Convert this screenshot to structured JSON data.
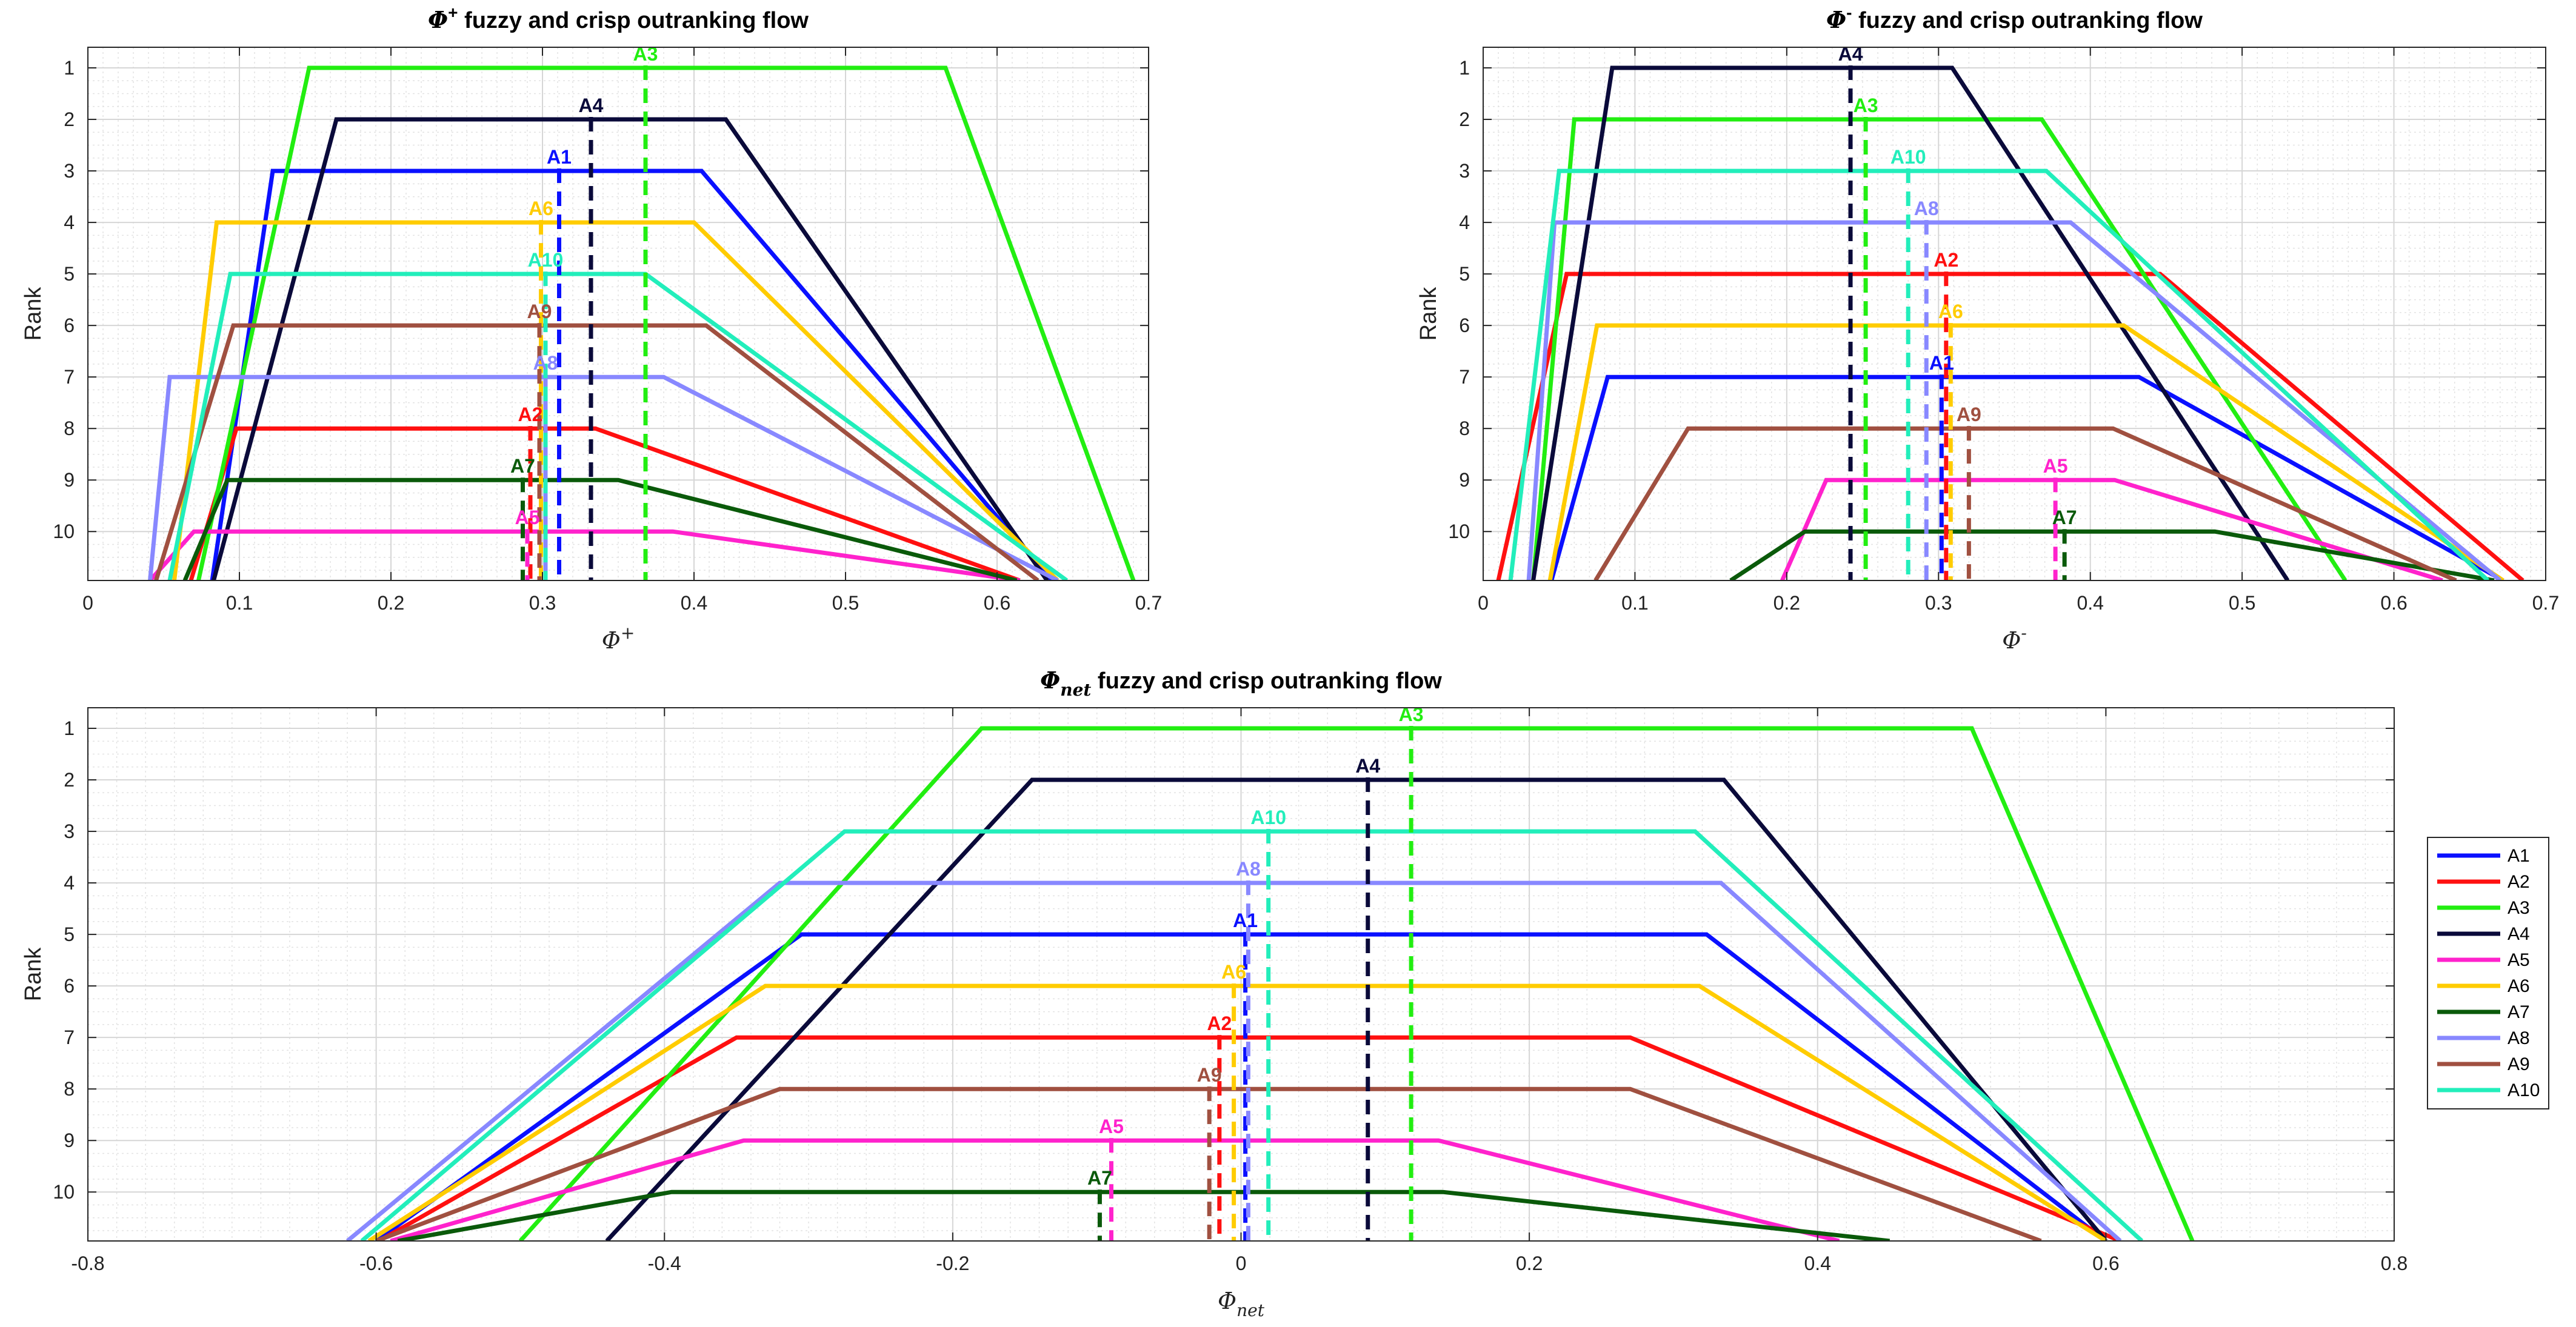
{
  "ylabel": "Rank",
  "series_names": [
    "A1",
    "A2",
    "A3",
    "A4",
    "A5",
    "A6",
    "A7",
    "A8",
    "A9",
    "A10"
  ],
  "colors": {
    "A1": "#0a10ff",
    "A2": "#ff1010",
    "A3": "#22ee11",
    "A4": "#0a0a3a",
    "A5": "#ff22cc",
    "A6": "#ffcc00",
    "A7": "#0a5a0a",
    "A8": "#8888ff",
    "A9": "#a05040",
    "A10": "#22eebb"
  },
  "chart_data": [
    {
      "type": "line",
      "title_main": "Φ",
      "title_sup": "+",
      "title_rest": " fuzzy and crisp outranking flow",
      "xlabel_main": "Φ",
      "xlabel_sup": "+",
      "ylabel": "Rank",
      "xlim": [
        0,
        0.7
      ],
      "ylim": [
        0.6,
        10.95
      ],
      "xticks": [
        0,
        0.1,
        0.2,
        0.3,
        0.4,
        0.5,
        0.6,
        0.7
      ],
      "xtick_labels": [
        "0",
        "0.1",
        "0.2",
        "0.3",
        "0.4",
        "0.5",
        "0.6",
        "0.7"
      ],
      "yticks": [
        1,
        2,
        3,
        4,
        5,
        6,
        7,
        8,
        9,
        10
      ],
      "yticks_labels": [
        "1",
        "2",
        "3",
        "4",
        "5",
        "6",
        "7",
        "8",
        "9",
        "10"
      ],
      "grid": true,
      "series": [
        {
          "name": "A1",
          "rank": 3,
          "a": 0.082,
          "b": 0.122,
          "c": 0.405,
          "d": 0.636,
          "crisp": 0.311
        },
        {
          "name": "A2",
          "rank": 8,
          "a": 0.068,
          "b": 0.098,
          "c": 0.335,
          "d": 0.615,
          "crisp": 0.292
        },
        {
          "name": "A3",
          "rank": 1,
          "a": 0.073,
          "b": 0.146,
          "c": 0.566,
          "d": 0.69,
          "crisp": 0.368
        },
        {
          "name": "A4",
          "rank": 2,
          "a": 0.083,
          "b": 0.164,
          "c": 0.421,
          "d": 0.633,
          "crisp": 0.332
        },
        {
          "name": "A5",
          "rank": 10,
          "a": 0.041,
          "b": 0.07,
          "c": 0.386,
          "d": 0.615,
          "crisp": 0.29
        },
        {
          "name": "A6",
          "rank": 4,
          "a": 0.057,
          "b": 0.085,
          "c": 0.4,
          "d": 0.64,
          "crisp": 0.299
        },
        {
          "name": "A7",
          "rank": 9,
          "a": 0.064,
          "b": 0.092,
          "c": 0.35,
          "d": 0.613,
          "crisp": 0.287
        },
        {
          "name": "A8",
          "rank": 7,
          "a": 0.041,
          "b": 0.054,
          "c": 0.38,
          "d": 0.64,
          "crisp": 0.302
        },
        {
          "name": "A9",
          "rank": 6,
          "a": 0.045,
          "b": 0.096,
          "c": 0.408,
          "d": 0.627,
          "crisp": 0.298
        },
        {
          "name": "A10",
          "rank": 5,
          "a": 0.054,
          "b": 0.094,
          "c": 0.368,
          "d": 0.646,
          "crisp": 0.302
        }
      ]
    },
    {
      "type": "line",
      "title_main": "Φ",
      "title_sup": "-",
      "title_rest": " fuzzy and crisp outranking flow",
      "xlabel_main": "Φ",
      "xlabel_sup": "-",
      "ylabel": "Rank",
      "xlim": [
        0,
        0.7
      ],
      "ylim": [
        0.6,
        10.95
      ],
      "xticks": [
        0,
        0.1,
        0.2,
        0.3,
        0.4,
        0.5,
        0.6,
        0.7
      ],
      "xtick_labels": [
        "0",
        "0.1",
        "0.2",
        "0.3",
        "0.4",
        "0.5",
        "0.6",
        "0.7"
      ],
      "yticks": [
        1,
        2,
        3,
        4,
        5,
        6,
        7,
        8,
        9,
        10
      ],
      "yticks_labels": [
        "1",
        "2",
        "3",
        "4",
        "5",
        "6",
        "7",
        "8",
        "9",
        "10"
      ],
      "grid": true,
      "series": [
        {
          "name": "A1",
          "rank": 7,
          "a": 0.045,
          "b": 0.082,
          "c": 0.432,
          "d": 0.672,
          "crisp": 0.302
        },
        {
          "name": "A2",
          "rank": 5,
          "a": 0.01,
          "b": 0.055,
          "c": 0.446,
          "d": 0.685,
          "crisp": 0.305
        },
        {
          "name": "A3",
          "rank": 2,
          "a": 0.033,
          "b": 0.06,
          "c": 0.368,
          "d": 0.568,
          "crisp": 0.252
        },
        {
          "name": "A4",
          "rank": 1,
          "a": 0.033,
          "b": 0.085,
          "c": 0.309,
          "d": 0.53,
          "crisp": 0.242
        },
        {
          "name": "A5",
          "rank": 9,
          "a": 0.197,
          "b": 0.226,
          "c": 0.416,
          "d": 0.632,
          "crisp": 0.377
        },
        {
          "name": "A6",
          "rank": 6,
          "a": 0.044,
          "b": 0.075,
          "c": 0.422,
          "d": 0.672,
          "crisp": 0.308
        },
        {
          "name": "A7",
          "rank": 10,
          "a": 0.163,
          "b": 0.212,
          "c": 0.482,
          "d": 0.666,
          "crisp": 0.383
        },
        {
          "name": "A8",
          "rank": 4,
          "a": 0.03,
          "b": 0.047,
          "c": 0.387,
          "d": 0.67,
          "crisp": 0.292
        },
        {
          "name": "A9",
          "rank": 8,
          "a": 0.074,
          "b": 0.135,
          "c": 0.415,
          "d": 0.641,
          "crisp": 0.32
        },
        {
          "name": "A10",
          "rank": 3,
          "a": 0.018,
          "b": 0.05,
          "c": 0.371,
          "d": 0.662,
          "crisp": 0.28
        }
      ]
    },
    {
      "type": "line",
      "title_main": "Φ",
      "title_sub": "net",
      "title_rest": " fuzzy and crisp outranking flow",
      "xlabel_main": "Φ",
      "xlabel_sub": "net",
      "ylabel": "Rank",
      "xlim": [
        -0.8,
        0.8
      ],
      "ylim": [
        0.6,
        10.95
      ],
      "xticks": [
        -0.8,
        -0.6,
        -0.4,
        -0.2,
        0,
        0.2,
        0.4,
        0.6,
        0.8
      ],
      "xtick_labels": [
        "-0.8",
        "-0.6",
        "-0.4",
        "-0.2",
        "0",
        "0.2",
        "0.4",
        "0.6",
        "0.8"
      ],
      "yticks": [
        1,
        2,
        3,
        4,
        5,
        6,
        7,
        8,
        9,
        10
      ],
      "yticks_labels": [
        "1",
        "2",
        "3",
        "4",
        "5",
        "6",
        "7",
        "8",
        "9",
        "10"
      ],
      "grid": true,
      "legend": "right",
      "series": [
        {
          "name": "A1",
          "rank": 5,
          "a": -0.6,
          "b": -0.305,
          "c": 0.323,
          "d": 0.6,
          "crisp": 0.003
        },
        {
          "name": "A2",
          "rank": 7,
          "a": -0.598,
          "b": -0.35,
          "c": 0.27,
          "d": 0.61,
          "crisp": -0.015
        },
        {
          "name": "A3",
          "rank": 1,
          "a": -0.5,
          "b": -0.18,
          "c": 0.507,
          "d": 0.66,
          "crisp": 0.118
        },
        {
          "name": "A4",
          "rank": 2,
          "a": -0.44,
          "b": -0.145,
          "c": 0.335,
          "d": 0.6,
          "crisp": 0.088
        },
        {
          "name": "A5",
          "rank": 9,
          "a": -0.59,
          "b": -0.345,
          "c": 0.137,
          "d": 0.415,
          "crisp": -0.09
        },
        {
          "name": "A6",
          "rank": 6,
          "a": -0.605,
          "b": -0.33,
          "c": 0.318,
          "d": 0.6,
          "crisp": -0.005
        },
        {
          "name": "A7",
          "rank": 10,
          "a": -0.585,
          "b": -0.395,
          "c": 0.14,
          "d": 0.45,
          "crisp": -0.098
        },
        {
          "name": "A8",
          "rank": 4,
          "a": -0.62,
          "b": -0.32,
          "c": 0.333,
          "d": 0.61,
          "crisp": 0.005
        },
        {
          "name": "A9",
          "rank": 8,
          "a": -0.6,
          "b": -0.32,
          "c": 0.27,
          "d": 0.555,
          "crisp": -0.022
        },
        {
          "name": "A10",
          "rank": 3,
          "a": -0.61,
          "b": -0.275,
          "c": 0.315,
          "d": 0.625,
          "crisp": 0.019
        }
      ]
    }
  ]
}
